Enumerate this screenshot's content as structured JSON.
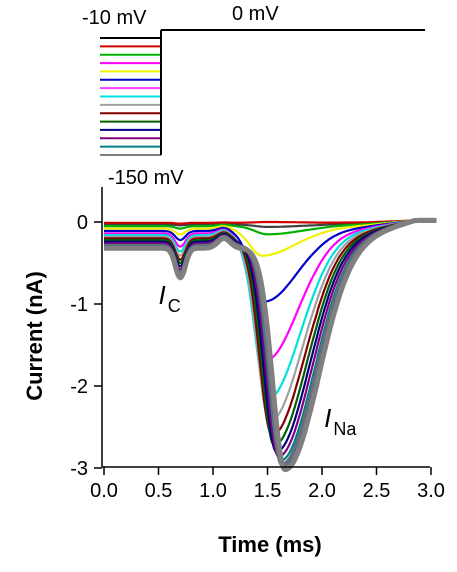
{
  "chart_data": {
    "type": "line",
    "xlabel": "Time (ms)",
    "ylabel": "Current (nA)",
    "xlim": [
      0,
      3
    ],
    "ylim": [
      -3,
      0.4
    ],
    "x_ticks": [
      "0.0",
      "0.5",
      "1.0",
      "1.5",
      "2.0",
      "2.5",
      "3.0"
    ],
    "x_tick_values": [
      0,
      0.5,
      1,
      1.5,
      2,
      2.5,
      3
    ],
    "y_ticks": [
      "0",
      "-1",
      "-2",
      "-3"
    ],
    "y_tick_values": [
      0,
      -1,
      -2,
      -3
    ],
    "grid": false,
    "legend": "none",
    "protocol": {
      "top_label": "-10 mV",
      "step_label": "0 mV",
      "bottom_label": "-150 mV",
      "step_time_ms": 0.55,
      "prepulse_colors": [
        "#000000",
        "#d00000",
        "#00b000",
        "#ff00ff",
        "#f2f200",
        "#0000c8",
        "#ff40ff",
        "#00e0e0",
        "#a0a0a0",
        "#800000",
        "#006000",
        "#000080",
        "#800080",
        "#008080",
        "#808080"
      ]
    },
    "annotations": [
      {
        "main": "I",
        "sub": "C",
        "x": 0.5,
        "y": -1.0
      },
      {
        "main": "I",
        "sub": "Na",
        "x": 2.02,
        "y": -2.5
      }
    ],
    "series": [
      {
        "color": "#404040",
        "baseline": -0.03,
        "cap_peak": -0.04,
        "na_peak": -0.03,
        "na_time": 1.5
      },
      {
        "color": "#d00000",
        "baseline": -0.01,
        "cap_peak": -0.02,
        "na_peak": 0.01,
        "na_time": 1.5
      },
      {
        "color": "#00b000",
        "baseline": -0.05,
        "cap_peak": -0.08,
        "na_peak": -0.1,
        "na_time": 1.5
      },
      {
        "color": "#f2f200",
        "baseline": -0.08,
        "cap_peak": -0.15,
        "na_peak": -0.33,
        "na_time": 1.45
      },
      {
        "color": "#0000c8",
        "baseline": -0.11,
        "cap_peak": -0.22,
        "na_peak": -0.86,
        "na_time": 1.47
      },
      {
        "color": "#ff00ff",
        "baseline": -0.14,
        "cap_peak": -0.3,
        "na_peak": -1.55,
        "na_time": 1.48
      },
      {
        "color": "#00e0e0",
        "baseline": -0.16,
        "cap_peak": -0.36,
        "na_peak": -2.0,
        "na_time": 1.5
      },
      {
        "color": "#a0a0a0",
        "baseline": -0.18,
        "cap_peak": -0.41,
        "na_peak": -2.25,
        "na_time": 1.52
      },
      {
        "color": "#800000",
        "baseline": -0.2,
        "cap_peak": -0.46,
        "na_peak": -2.4,
        "na_time": 1.54
      },
      {
        "color": "#006000",
        "baseline": -0.22,
        "cap_peak": -0.5,
        "na_peak": -2.5,
        "na_time": 1.56
      },
      {
        "color": "#000080",
        "baseline": -0.24,
        "cap_peak": -0.54,
        "na_peak": -2.56,
        "na_time": 1.58
      },
      {
        "color": "#800080",
        "baseline": -0.26,
        "cap_peak": -0.58,
        "na_peak": -2.6,
        "na_time": 1.6
      },
      {
        "color": "#008080",
        "baseline": -0.28,
        "cap_peak": -0.62,
        "na_peak": -2.63,
        "na_time": 1.62
      },
      {
        "color": "#607080",
        "baseline": -0.3,
        "cap_peak": -0.65,
        "na_peak": -2.66,
        "na_time": 1.64
      },
      {
        "color": "#808080",
        "baseline": -0.32,
        "cap_peak": -0.68,
        "na_peak": -2.7,
        "na_time": 1.66
      }
    ]
  }
}
